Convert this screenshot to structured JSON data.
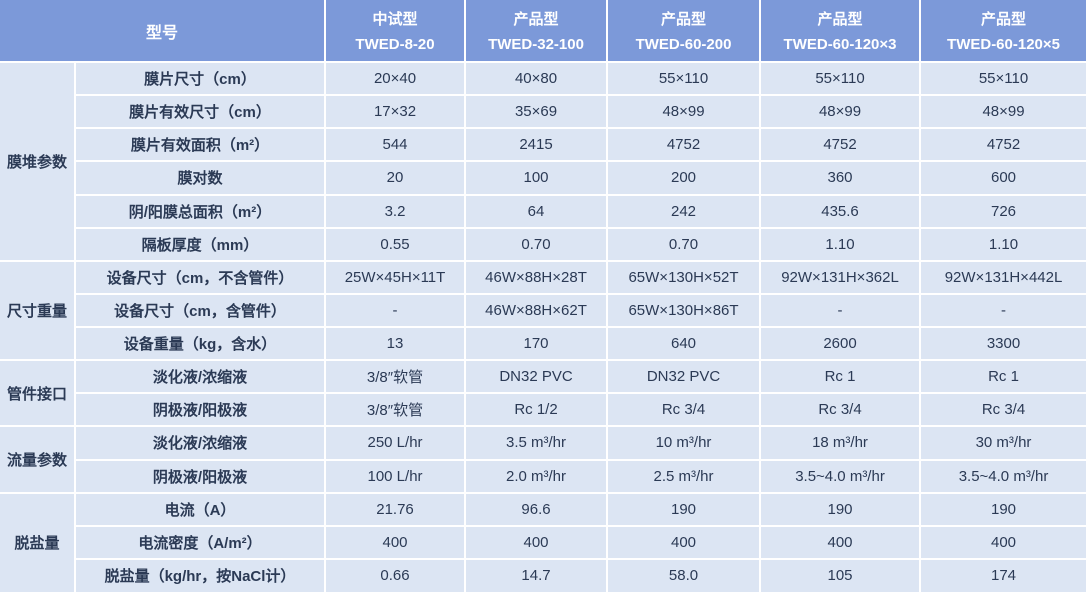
{
  "colors": {
    "header_bg": "#7C99D9",
    "cell_bg": "#DCE5F3",
    "border": "#FFFFFF",
    "header_text": "#FFFFFF",
    "body_text": "#2B3A55"
  },
  "table": {
    "corner_label": "型号",
    "columns": [
      {
        "type": "中试型",
        "model": "TWED-8-20"
      },
      {
        "type": "产品型",
        "model": "TWED-32-100"
      },
      {
        "type": "产品型",
        "model": "TWED-60-200"
      },
      {
        "type": "产品型",
        "model": "TWED-60-120×3"
      },
      {
        "type": "产品型",
        "model": "TWED-60-120×5"
      }
    ],
    "groups": [
      {
        "label": "膜堆参数",
        "rows": [
          {
            "label": "膜片尺寸（cm）",
            "values": [
              "20×40",
              "40×80",
              "55×110",
              "55×110",
              "55×110"
            ]
          },
          {
            "label": "膜片有效尺寸（cm）",
            "values": [
              "17×32",
              "35×69",
              "48×99",
              "48×99",
              "48×99"
            ]
          },
          {
            "label": "膜片有效面积（m²）",
            "values": [
              "544",
              "2415",
              "4752",
              "4752",
              "4752"
            ]
          },
          {
            "label": "膜对数",
            "values": [
              "20",
              "100",
              "200",
              "360",
              "600"
            ]
          },
          {
            "label": "阴/阳膜总面积（m²）",
            "values": [
              "3.2",
              "64",
              "242",
              "435.6",
              "726"
            ]
          },
          {
            "label": "隔板厚度（mm）",
            "values": [
              "0.55",
              "0.70",
              "0.70",
              "1.10",
              "1.10"
            ]
          }
        ]
      },
      {
        "label": "尺寸重量",
        "rows": [
          {
            "label": "设备尺寸（cm，不含管件）",
            "values": [
              "25W×45H×11T",
              "46W×88H×28T",
              "65W×130H×52T",
              "92W×131H×362L",
              "92W×131H×442L"
            ]
          },
          {
            "label": "设备尺寸（cm，含管件）",
            "values": [
              "-",
              "46W×88H×62T",
              "65W×130H×86T",
              "-",
              "-"
            ]
          },
          {
            "label": "设备重量（kg，含水）",
            "values": [
              "13",
              "170",
              "640",
              "2600",
              "3300"
            ]
          }
        ]
      },
      {
        "label": "管件接口",
        "rows": [
          {
            "label": "淡化液/浓缩液",
            "values": [
              "3/8″软管",
              "DN32 PVC",
              "DN32 PVC",
              "Rc 1",
              "Rc 1"
            ]
          },
          {
            "label": "阴极液/阳极液",
            "values": [
              "3/8″软管",
              "Rc 1/2",
              "Rc 3/4",
              "Rc 3/4",
              "Rc 3/4"
            ]
          }
        ]
      },
      {
        "label": "流量参数",
        "rows": [
          {
            "label": "淡化液/浓缩液",
            "values": [
              "250 L/hr",
              "3.5 m³/hr",
              "10 m³/hr",
              "18 m³/hr",
              "30 m³/hr"
            ]
          },
          {
            "label": "阴极液/阳极液",
            "values": [
              "100 L/hr",
              "2.0 m³/hr",
              "2.5 m³/hr",
              "3.5~4.0 m³/hr",
              "3.5~4.0 m³/hr"
            ]
          }
        ]
      },
      {
        "label": "脱盐量",
        "rows": [
          {
            "label": "电流（A）",
            "values": [
              "21.76",
              "96.6",
              "190",
              "190",
              "190"
            ]
          },
          {
            "label": "电流密度（A/m²）",
            "values": [
              "400",
              "400",
              "400",
              "400",
              "400"
            ]
          },
          {
            "label": "脱盐量（kg/hr，按NaCl计）",
            "values": [
              "0.66",
              "14.7",
              "58.0",
              "105",
              "174"
            ]
          }
        ]
      }
    ]
  }
}
